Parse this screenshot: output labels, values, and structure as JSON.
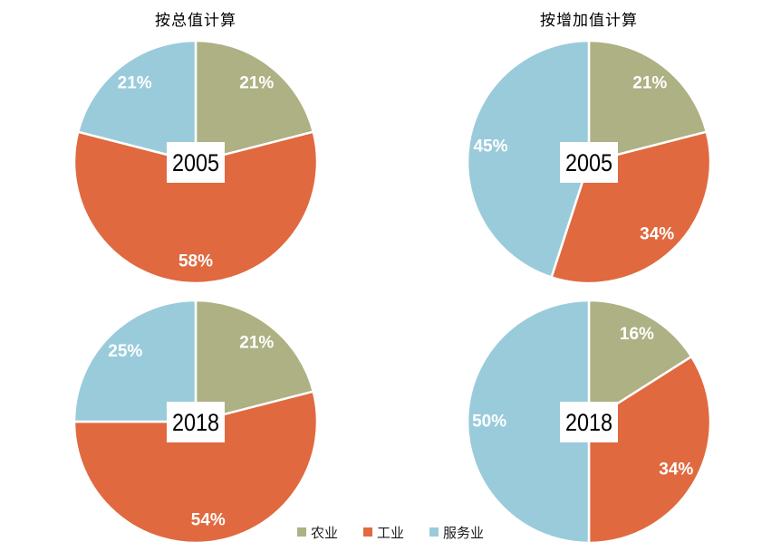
{
  "titles": {
    "left": "按总值计算",
    "right": "按增加值计算"
  },
  "legend": {
    "items": [
      {
        "label": "农业",
        "color": "#ADB183"
      },
      {
        "label": "工业",
        "color": "#E0693F"
      },
      {
        "label": "服务业",
        "color": "#9ACBDB"
      }
    ]
  },
  "chart_data": [
    {
      "id": "total-2005",
      "type": "pie",
      "column_title": "按总值计算",
      "center_label": "2005",
      "categories": [
        "农业",
        "工业",
        "服务业"
      ],
      "values": [
        21,
        58,
        21
      ],
      "labels": [
        "21%",
        "58%",
        "21%"
      ],
      "colors": [
        "#ADB183",
        "#E0693F",
        "#9ACBDB"
      ],
      "unit": "percent",
      "start_angle_deg": 0,
      "direction": "clockwise",
      "legend_position": "bottom-shared"
    },
    {
      "id": "added-2005",
      "type": "pie",
      "column_title": "按增加值计算",
      "center_label": "2005",
      "categories": [
        "农业",
        "工业",
        "服务业"
      ],
      "values": [
        21,
        34,
        45
      ],
      "labels": [
        "21%",
        "34%",
        "45%"
      ],
      "colors": [
        "#ADB183",
        "#E0693F",
        "#9ACBDB"
      ],
      "unit": "percent",
      "start_angle_deg": 0,
      "direction": "clockwise",
      "legend_position": "bottom-shared"
    },
    {
      "id": "total-2018",
      "type": "pie",
      "column_title": "按总值计算",
      "center_label": "2018",
      "categories": [
        "农业",
        "工业",
        "服务业"
      ],
      "values": [
        21,
        54,
        25
      ],
      "labels": [
        "21%",
        "54%",
        "25%"
      ],
      "colors": [
        "#ADB183",
        "#E0693F",
        "#9ACBDB"
      ],
      "unit": "percent",
      "start_angle_deg": 0,
      "direction": "clockwise",
      "legend_position": "bottom-shared"
    },
    {
      "id": "added-2018",
      "type": "pie",
      "column_title": "按增加值计算",
      "center_label": "2018",
      "categories": [
        "农业",
        "工业",
        "服务业"
      ],
      "values": [
        16,
        34,
        50
      ],
      "labels": [
        "16%",
        "34%",
        "50%"
      ],
      "colors": [
        "#ADB183",
        "#E0693F",
        "#9ACBDB"
      ],
      "unit": "percent",
      "start_angle_deg": 0,
      "direction": "clockwise",
      "legend_position": "bottom-shared"
    }
  ]
}
